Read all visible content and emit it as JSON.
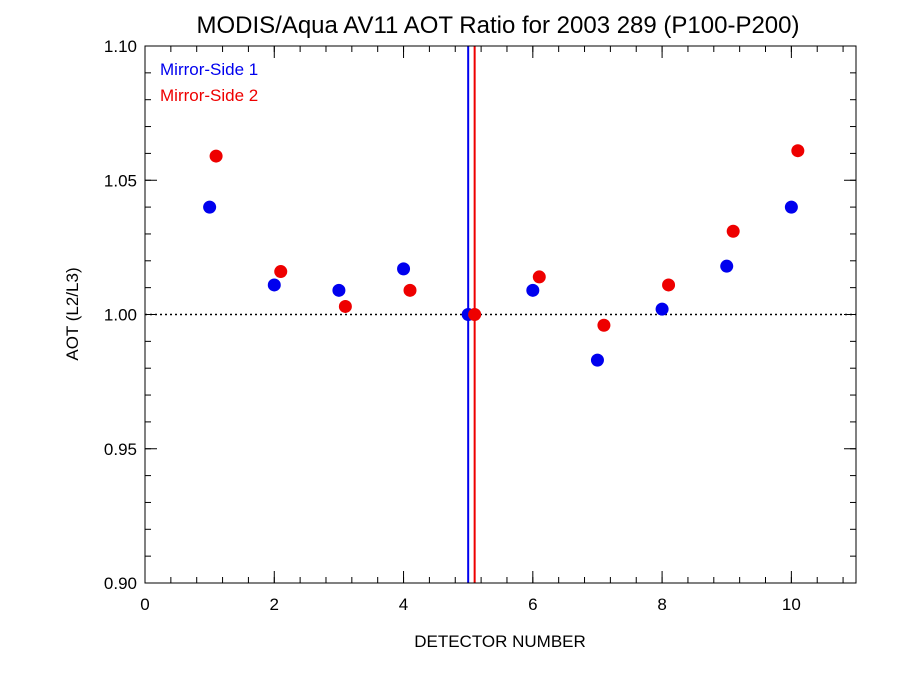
{
  "chart_data": {
    "type": "scatter",
    "title": "MODIS/Aqua AV11 AOT Ratio for 2003 289 (P100-P200)",
    "xlabel": "DETECTOR NUMBER",
    "ylabel": "AOT (L2/L3)",
    "xlim": [
      0,
      11
    ],
    "ylim": [
      0.9,
      1.1
    ],
    "x_ticks": [
      0,
      2,
      4,
      6,
      8,
      10
    ],
    "x_tick_labels": [
      "0",
      "2",
      "4",
      "6",
      "8",
      "10"
    ],
    "y_ticks": [
      0.9,
      0.95,
      1.0,
      1.05,
      1.1
    ],
    "y_tick_labels": [
      "0.90",
      "0.95",
      "1.00",
      "1.05",
      "1.10"
    ],
    "x_minor_step": 0.4,
    "y_minor_step": 0.01,
    "reference_line": {
      "y": 1.0,
      "style": "dotted"
    },
    "legend_position": "top-left",
    "series": [
      {
        "name": "Mirror-Side 1",
        "color": "#0000ee",
        "x": [
          1,
          2,
          3,
          4,
          5,
          6,
          7,
          8,
          9,
          10
        ],
        "y": [
          1.04,
          1.011,
          1.009,
          1.017,
          1.0,
          1.009,
          0.983,
          1.002,
          1.018,
          1.04
        ],
        "vertical_line_x": 5.0
      },
      {
        "name": "Mirror-Side 2",
        "color": "#ee0000",
        "x": [
          1.1,
          2.1,
          3.1,
          4.1,
          5.1,
          6.1,
          7.1,
          8.1,
          9.1,
          10.1
        ],
        "y": [
          1.059,
          1.016,
          1.003,
          1.009,
          1.0,
          1.014,
          0.996,
          1.011,
          1.031,
          1.061
        ],
        "vertical_line_x": 5.1
      }
    ]
  }
}
